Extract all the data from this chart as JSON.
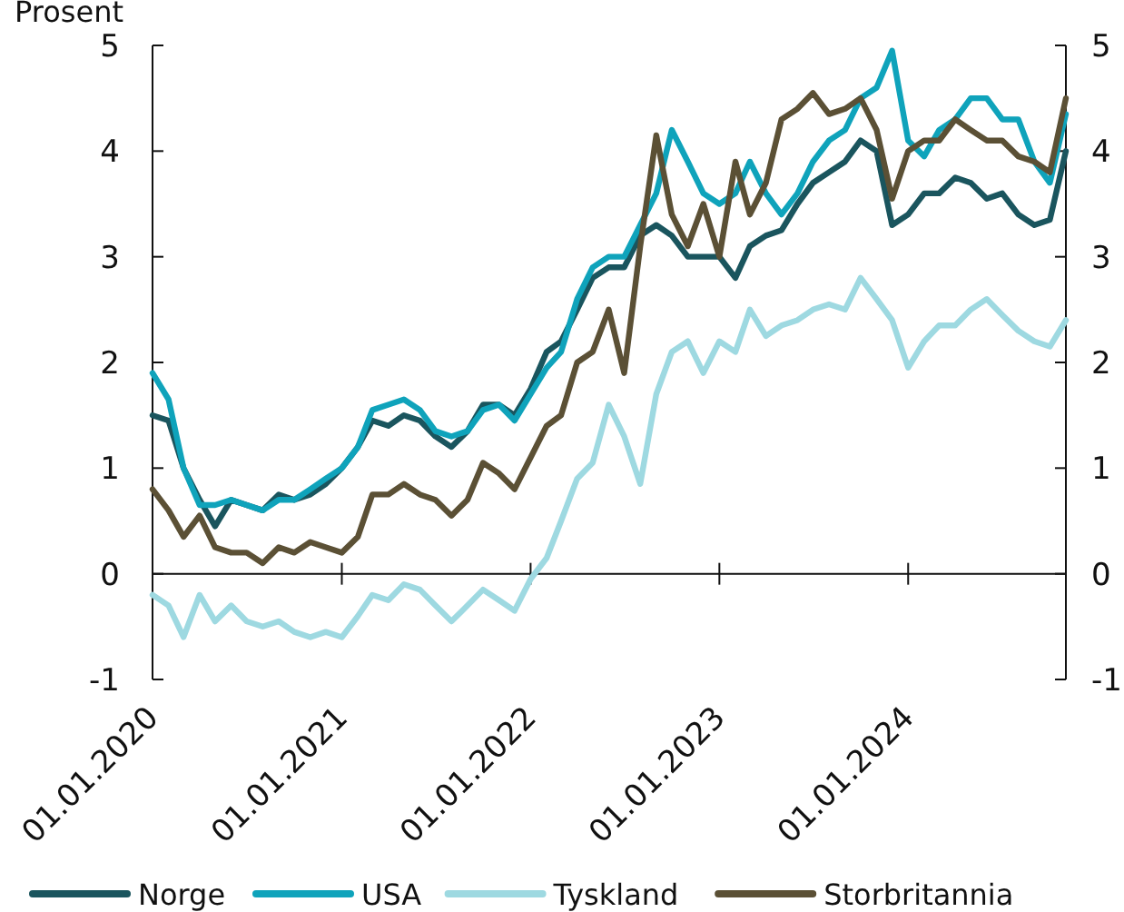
{
  "chart_data": {
    "type": "line",
    "ylabel": "Prosent",
    "x": [
      "2020-01",
      "2020-02",
      "2020-03",
      "2020-04",
      "2020-05",
      "2020-06",
      "2020-07",
      "2020-08",
      "2020-09",
      "2020-10",
      "2020-11",
      "2020-12",
      "2021-01",
      "2021-02",
      "2021-03",
      "2021-04",
      "2021-05",
      "2021-06",
      "2021-07",
      "2021-08",
      "2021-09",
      "2021-10",
      "2021-11",
      "2021-12",
      "2022-01",
      "2022-02",
      "2022-03",
      "2022-04",
      "2022-05",
      "2022-06",
      "2022-07",
      "2022-08",
      "2022-09",
      "2022-10",
      "2022-11",
      "2022-12",
      "2023-01",
      "2023-02",
      "2023-03",
      "2023-04",
      "2023-05",
      "2023-06",
      "2023-07",
      "2023-08",
      "2023-09",
      "2023-10",
      "2023-11",
      "2023-12",
      "2024-01",
      "2024-02",
      "2024-03",
      "2024-04",
      "2024-05",
      "2024-06",
      "2024-07",
      "2024-08",
      "2024-09",
      "2024-10",
      "2024-11"
    ],
    "series": [
      {
        "name": "Norge",
        "color": "#1a555e",
        "values": [
          1.5,
          1.45,
          1.0,
          0.7,
          0.45,
          0.7,
          0.65,
          0.6,
          0.75,
          0.7,
          0.75,
          0.85,
          1.0,
          1.2,
          1.45,
          1.4,
          1.5,
          1.45,
          1.3,
          1.2,
          1.35,
          1.6,
          1.6,
          1.5,
          1.75,
          2.1,
          2.2,
          2.5,
          2.8,
          2.9,
          2.9,
          3.2,
          3.3,
          3.2,
          3.0,
          3.0,
          3.0,
          2.8,
          3.1,
          3.2,
          3.25,
          3.5,
          3.7,
          3.8,
          3.9,
          4.1,
          4.0,
          3.3,
          3.4,
          3.6,
          3.6,
          3.75,
          3.7,
          3.55,
          3.6,
          3.4,
          3.3,
          3.35,
          4.0
        ]
      },
      {
        "name": "USA",
        "color": "#0fa3bb",
        "values": [
          1.9,
          1.65,
          1.0,
          0.65,
          0.65,
          0.7,
          0.65,
          0.6,
          0.7,
          0.7,
          0.8,
          0.9,
          1.0,
          1.2,
          1.55,
          1.6,
          1.65,
          1.55,
          1.35,
          1.3,
          1.35,
          1.55,
          1.6,
          1.45,
          1.7,
          1.95,
          2.1,
          2.6,
          2.9,
          3.0,
          3.0,
          3.3,
          3.6,
          4.2,
          3.9,
          3.6,
          3.5,
          3.6,
          3.9,
          3.6,
          3.4,
          3.6,
          3.9,
          4.1,
          4.2,
          4.5,
          4.6,
          4.95,
          4.1,
          3.95,
          4.2,
          4.3,
          4.5,
          4.5,
          4.3,
          4.3,
          3.9,
          3.7,
          4.35
        ]
      },
      {
        "name": "Tyskland",
        "color": "#9ed9e1",
        "values": [
          -0.2,
          -0.3,
          -0.6,
          -0.2,
          -0.45,
          -0.3,
          -0.45,
          -0.5,
          -0.45,
          -0.55,
          -0.6,
          -0.55,
          -0.6,
          -0.4,
          -0.2,
          -0.25,
          -0.1,
          -0.15,
          -0.3,
          -0.45,
          -0.3,
          -0.15,
          -0.25,
          -0.35,
          -0.05,
          0.15,
          0.5,
          0.9,
          1.05,
          1.6,
          1.3,
          0.85,
          1.7,
          2.1,
          2.2,
          1.9,
          2.2,
          2.1,
          2.5,
          2.25,
          2.35,
          2.4,
          2.5,
          2.55,
          2.5,
          2.8,
          2.6,
          2.4,
          1.95,
          2.2,
          2.35,
          2.35,
          2.5,
          2.6,
          2.45,
          2.3,
          2.2,
          2.15,
          2.4
        ]
      },
      {
        "name": "Storbritannia",
        "color": "#5b5035",
        "values": [
          0.8,
          0.6,
          0.35,
          0.55,
          0.25,
          0.2,
          0.2,
          0.1,
          0.25,
          0.2,
          0.3,
          0.25,
          0.2,
          0.35,
          0.75,
          0.75,
          0.85,
          0.75,
          0.7,
          0.55,
          0.7,
          1.05,
          0.95,
          0.8,
          1.1,
          1.4,
          1.5,
          2.0,
          2.1,
          2.5,
          1.9,
          3.1,
          4.15,
          3.4,
          3.1,
          3.5,
          3.0,
          3.9,
          3.4,
          3.7,
          4.3,
          4.4,
          4.55,
          4.35,
          4.4,
          4.5,
          4.2,
          3.55,
          4.0,
          4.1,
          4.1,
          4.3,
          4.2,
          4.1,
          4.1,
          3.95,
          3.9,
          3.8,
          4.5
        ]
      }
    ],
    "xlim": [
      "2020-01",
      "2024-11"
    ],
    "xticks": [
      {
        "value": "2020-01",
        "label": "01.01.2020"
      },
      {
        "value": "2021-01",
        "label": "01.01.2021"
      },
      {
        "value": "2022-01",
        "label": "01.01.2022"
      },
      {
        "value": "2023-01",
        "label": "01.01.2023"
      },
      {
        "value": "2024-01",
        "label": "01.01.2024"
      }
    ],
    "ylim": [
      -1,
      5
    ],
    "yticks": [
      -1,
      0,
      1,
      2,
      3,
      4,
      5
    ],
    "y2lim": [
      -1,
      5
    ],
    "y2ticks": [
      -1,
      0,
      1,
      2,
      3,
      4,
      5
    ],
    "legend": "bottom",
    "line_style": "solid",
    "marker": "none"
  }
}
